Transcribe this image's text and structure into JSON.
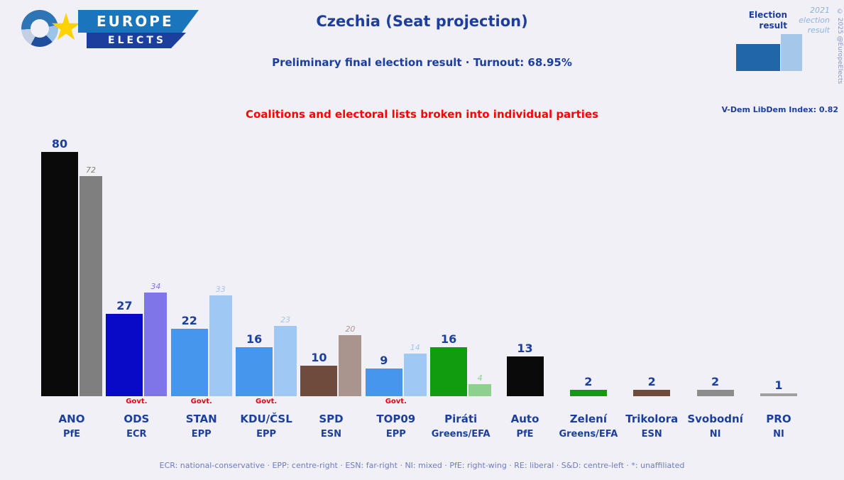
{
  "header": {
    "title": "Czechia (Seat projection)",
    "subtitle": "Preliminary final election result · Turnout: 68.95%",
    "note": "Coalitions and electoral lists broken into individual parties",
    "logo": {
      "line1": "EUROPE",
      "line2": "ELECTS"
    },
    "legend": {
      "current": "Election result",
      "previous": "2021 election result"
    },
    "vdem": "V-Dem LibDem Index: 0.82",
    "copyright": "© 2025 @EuropeElects"
  },
  "footer": {
    "groups_legend": "ECR: national-conservative · EPP: centre-right · ESN: far-right · NI: mixed · PfE: right-wing · RE: liberal · S&D: centre-left · *: unaffiliated"
  },
  "chart_data": {
    "type": "bar",
    "title": "Czechia (Seat projection)",
    "unit": "seats",
    "ylim": [
      0,
      80
    ],
    "govt_label": "Govt.",
    "legend_position": "top-right",
    "series": [
      "Election result",
      "2021 election result"
    ],
    "parties": [
      {
        "name": "ANO",
        "group": "PfE",
        "value": 80,
        "prev": 72,
        "color": "#0a0a0a",
        "prev_color": "#7f7f7f",
        "govt": false
      },
      {
        "name": "ODS",
        "group": "ECR",
        "value": 27,
        "prev": 34,
        "color": "#0909c8",
        "prev_color": "#7d75e8",
        "govt": true
      },
      {
        "name": "STAN",
        "group": "EPP",
        "value": 22,
        "prev": 33,
        "color": "#4596ec",
        "prev_color": "#9fc8f5",
        "govt": true
      },
      {
        "name": "KDU/ČSL",
        "group": "EPP",
        "value": 16,
        "prev": 23,
        "color": "#4596ec",
        "prev_color": "#9fc8f5",
        "govt": true
      },
      {
        "name": "SPD",
        "group": "ESN",
        "value": 10,
        "prev": 20,
        "color": "#6e4b3d",
        "prev_color": "#a9958d",
        "govt": false
      },
      {
        "name": "TOP09",
        "group": "EPP",
        "value": 9,
        "prev": 14,
        "color": "#4596ec",
        "prev_color": "#9fc8f5",
        "govt": true
      },
      {
        "name": "Piráti",
        "group": "Greens/EFA",
        "value": 16,
        "prev": 4,
        "color": "#0f9d0f",
        "prev_color": "#8ed08e",
        "govt": false
      },
      {
        "name": "Auto",
        "group": "PfE",
        "value": 13,
        "prev": null,
        "color": "#0a0a0a",
        "prev_color": null,
        "govt": false
      },
      {
        "name": "Zelení",
        "group": "Greens/EFA",
        "value": 2,
        "prev": null,
        "color": "#0f9d0f",
        "prev_color": null,
        "govt": false
      },
      {
        "name": "Trikolora",
        "group": "ESN",
        "value": 2,
        "prev": null,
        "color": "#6e4b3d",
        "prev_color": null,
        "govt": false
      },
      {
        "name": "Svobodní",
        "group": "NI",
        "value": 2,
        "prev": null,
        "color": "#8c8c8c",
        "prev_color": null,
        "govt": false
      },
      {
        "name": "PRO",
        "group": "NI",
        "value": 1,
        "prev": null,
        "color": "#a0a0a0",
        "prev_color": null,
        "govt": false
      }
    ]
  }
}
